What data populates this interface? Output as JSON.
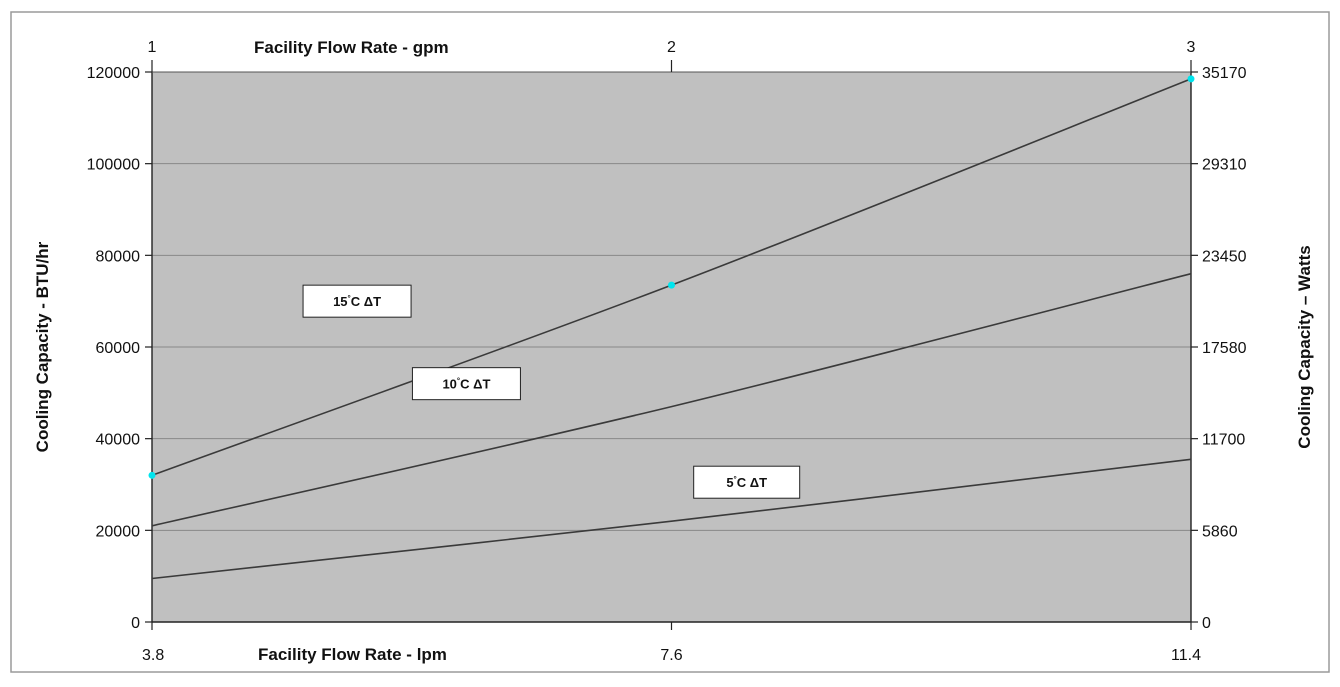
{
  "chart_data": {
    "type": "line",
    "xlabel_bottom": "Facility Flow Rate - lpm",
    "xlabel_top": "Facility Flow Rate - gpm",
    "ylabel_left": "Cooling Capacity - BTU/hr",
    "ylabel_right": "Cooling Capacity – Watts",
    "x_ticks_bottom": [
      "3.8",
      "7.6",
      "11.4"
    ],
    "x_ticks_top": [
      "1",
      "2",
      "3"
    ],
    "y_ticks_left": [
      "0",
      "20000",
      "40000",
      "60000",
      "80000",
      "100000",
      "120000"
    ],
    "y_ticks_right": [
      "0",
      "5860",
      "11700",
      "17580",
      "23450",
      "29310",
      "35170"
    ],
    "xlim": [
      3.8,
      11.4
    ],
    "ylim": [
      0,
      120000
    ],
    "grid": "horizontal",
    "series": [
      {
        "name": "15°C ΔT",
        "label_text": "15",
        "label_suffix": "C ΔT",
        "x": [
          3.8,
          7.6,
          11.4
        ],
        "values": [
          32000,
          73500,
          118500
        ],
        "marker_color": "#00e5ee",
        "label_at": [
          5.3,
          70000
        ]
      },
      {
        "name": "10°C ΔT",
        "label_text": "10",
        "label_suffix": "C ΔT",
        "x": [
          3.8,
          7.6,
          11.4
        ],
        "values": [
          21000,
          47000,
          76000
        ],
        "label_at": [
          6.1,
          52000
        ]
      },
      {
        "name": "5°C ΔT",
        "label_text": "5",
        "label_suffix": "C ΔT",
        "x": [
          3.8,
          7.6,
          11.4
        ],
        "values": [
          9500,
          22000,
          35500
        ],
        "label_at": [
          8.15,
          30500
        ]
      }
    ],
    "colors": {
      "plot_background": "#c0c0c0",
      "grid": "#888888",
      "line": "#3a3a3a",
      "frame": "#9a9a9a"
    }
  }
}
